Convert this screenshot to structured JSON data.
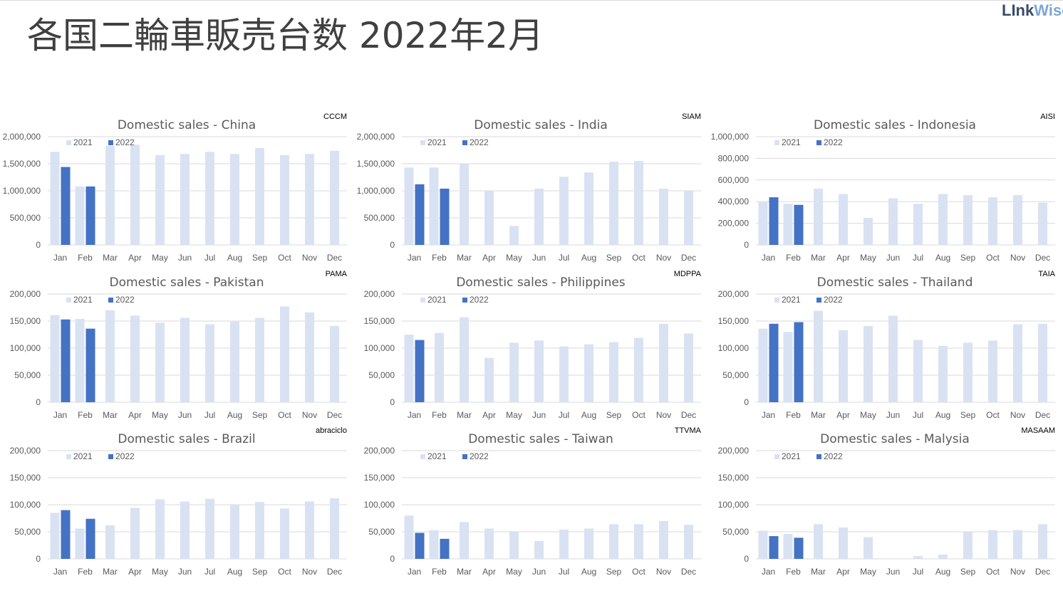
{
  "page": {
    "title": "各国二輪車販売台数 2022年2月",
    "logo": {
      "part1": "LInk",
      "part2": "Wise"
    }
  },
  "colors": {
    "series2021": "#d9e2f3",
    "series2022": "#4472c4",
    "grid": "#d9d9d9",
    "text": "#595959"
  },
  "chart_data": [
    {
      "type": "bar",
      "title": "Domestic sales - China",
      "source": "CCCM",
      "categories": [
        "Jan",
        "Feb",
        "Mar",
        "Apr",
        "May",
        "Jun",
        "Jul",
        "Aug",
        "Sep",
        "Oct",
        "Nov",
        "Dec"
      ],
      "ylim": [
        0,
        2000000
      ],
      "yticks": [
        0,
        500000,
        1000000,
        1500000,
        2000000
      ],
      "ytick_labels": [
        "0",
        "500,000",
        "1,000,000",
        "1,500,000",
        "2,000,000"
      ],
      "series": [
        {
          "name": "2021",
          "values": [
            1720000,
            1080000,
            1830000,
            1850000,
            1660000,
            1680000,
            1720000,
            1680000,
            1790000,
            1660000,
            1680000,
            1740000
          ]
        },
        {
          "name": "2022",
          "values": [
            1440000,
            1080000,
            null,
            null,
            null,
            null,
            null,
            null,
            null,
            null,
            null,
            null
          ]
        }
      ],
      "legend": "top-left",
      "grid": true
    },
    {
      "type": "bar",
      "title": "Domestic sales - India",
      "source": "SIAM",
      "categories": [
        "Jan",
        "Feb",
        "Mar",
        "Apr",
        "May",
        "Jun",
        "Jul",
        "Aug",
        "Sep",
        "Oct",
        "Nov",
        "Dec"
      ],
      "ylim": [
        0,
        2000000
      ],
      "yticks": [
        0,
        500000,
        1000000,
        1500000,
        2000000
      ],
      "ytick_labels": [
        "0",
        "500,000",
        "1,000,000",
        "1,500,000",
        "2,000,000"
      ],
      "series": [
        {
          "name": "2021",
          "values": [
            1430000,
            1430000,
            1500000,
            1000000,
            350000,
            1040000,
            1260000,
            1340000,
            1540000,
            1550000,
            1040000,
            1000000
          ]
        },
        {
          "name": "2022",
          "values": [
            1120000,
            1040000,
            null,
            null,
            null,
            null,
            null,
            null,
            null,
            null,
            null,
            null
          ]
        }
      ],
      "legend": "top-left",
      "grid": true
    },
    {
      "type": "bar",
      "title": "Domestic sales - Indonesia",
      "source": "AISI",
      "categories": [
        "Jan",
        "Feb",
        "Mar",
        "Apr",
        "May",
        "Jun",
        "Jul",
        "Aug",
        "Sep",
        "Oct",
        "Nov",
        "Dec"
      ],
      "ylim": [
        0,
        1000000
      ],
      "yticks": [
        0,
        200000,
        400000,
        600000,
        800000,
        1000000
      ],
      "ytick_labels": [
        "0",
        "200,000",
        "400,000",
        "600,000",
        "800,000",
        "1,000,000"
      ],
      "series": [
        {
          "name": "2021",
          "values": [
            400000,
            380000,
            520000,
            470000,
            250000,
            430000,
            380000,
            470000,
            460000,
            440000,
            460000,
            390000
          ]
        },
        {
          "name": "2022",
          "values": [
            440000,
            370000,
            null,
            null,
            null,
            null,
            null,
            null,
            null,
            null,
            null,
            null
          ]
        }
      ],
      "legend": "top-left",
      "grid": true
    },
    {
      "type": "bar",
      "title": "Domestic sales - Pakistan",
      "source": "PAMA",
      "categories": [
        "Jan",
        "Feb",
        "Mar",
        "Apr",
        "May",
        "Jun",
        "Jul",
        "Aug",
        "Sep",
        "Oct",
        "Nov",
        "Dec"
      ],
      "ylim": [
        0,
        200000
      ],
      "yticks": [
        0,
        50000,
        100000,
        150000,
        200000
      ],
      "ytick_labels": [
        "0",
        "50,000",
        "100,000",
        "150,000",
        "200,000"
      ],
      "series": [
        {
          "name": "2021",
          "values": [
            161000,
            154000,
            170000,
            160000,
            147000,
            156000,
            144000,
            149000,
            156000,
            177000,
            166000,
            141000
          ]
        },
        {
          "name": "2022",
          "values": [
            153000,
            136000,
            null,
            null,
            null,
            null,
            null,
            null,
            null,
            null,
            null,
            null
          ]
        }
      ],
      "legend": "top-left",
      "grid": true
    },
    {
      "type": "bar",
      "title": "Domestic sales - Philippines",
      "source": "MDPPA",
      "categories": [
        "Jan",
        "Feb",
        "Mar",
        "Apr",
        "May",
        "Jun",
        "Jul",
        "Aug",
        "Sep",
        "Oct",
        "Nov",
        "Dec"
      ],
      "ylim": [
        0,
        200000
      ],
      "yticks": [
        0,
        50000,
        100000,
        150000,
        200000
      ],
      "ytick_labels": [
        "0",
        "50,000",
        "100,000",
        "150,000",
        "200,000"
      ],
      "series": [
        {
          "name": "2021",
          "values": [
            125000,
            128000,
            157000,
            82000,
            110000,
            114000,
            103000,
            107000,
            111000,
            119000,
            145000,
            127000
          ]
        },
        {
          "name": "2022",
          "values": [
            115000,
            null,
            null,
            null,
            null,
            null,
            null,
            null,
            null,
            null,
            null,
            null
          ]
        }
      ],
      "legend": "top-left",
      "grid": true
    },
    {
      "type": "bar",
      "title": "Domestic sales - Thailand",
      "source": "TAIA",
      "categories": [
        "Jan",
        "Feb",
        "Mar",
        "Apr",
        "May",
        "Jun",
        "Jul",
        "Aug",
        "Sep",
        "Oct",
        "Nov",
        "Dec"
      ],
      "ylim": [
        0,
        200000
      ],
      "yticks": [
        0,
        50000,
        100000,
        150000,
        200000
      ],
      "ytick_labels": [
        "0",
        "50,000",
        "100,000",
        "150,000",
        "200,000"
      ],
      "series": [
        {
          "name": "2021",
          "values": [
            136000,
            130000,
            169000,
            133000,
            141000,
            160000,
            115000,
            104000,
            110000,
            114000,
            144000,
            145000
          ]
        },
        {
          "name": "2022",
          "values": [
            145000,
            148000,
            null,
            null,
            null,
            null,
            null,
            null,
            null,
            null,
            null,
            null
          ]
        }
      ],
      "legend": "top-left",
      "grid": true
    },
    {
      "type": "bar",
      "title": "Domestic sales - Brazil",
      "source": "abraciclo",
      "categories": [
        "Jan",
        "Feb",
        "Mar",
        "Apr",
        "May",
        "Jun",
        "Jul",
        "Aug",
        "Sep",
        "Oct",
        "Nov",
        "Dec"
      ],
      "ylim": [
        0,
        200000
      ],
      "yticks": [
        0,
        50000,
        100000,
        150000,
        200000
      ],
      "ytick_labels": [
        "0",
        "50,000",
        "100,000",
        "150,000",
        "200,000"
      ],
      "series": [
        {
          "name": "2021",
          "values": [
            85000,
            56000,
            62000,
            94000,
            110000,
            106000,
            111000,
            100000,
            105000,
            93000,
            106000,
            112000
          ]
        },
        {
          "name": "2022",
          "values": [
            90000,
            74000,
            null,
            null,
            null,
            null,
            null,
            null,
            null,
            null,
            null,
            null
          ]
        }
      ],
      "legend": "top-left",
      "grid": true
    },
    {
      "type": "bar",
      "title": "Domestic sales - Taiwan",
      "source": "TTVMA",
      "categories": [
        "Jan",
        "Feb",
        "Mar",
        "Apr",
        "May",
        "Jun",
        "Jul",
        "Aug",
        "Sep",
        "Oct",
        "Nov",
        "Dec"
      ],
      "ylim": [
        0,
        200000
      ],
      "yticks": [
        0,
        50000,
        100000,
        150000,
        200000
      ],
      "ytick_labels": [
        "0",
        "50,000",
        "100,000",
        "150,000",
        "200,000"
      ],
      "series": [
        {
          "name": "2021",
          "values": [
            80000,
            53000,
            68000,
            56000,
            51000,
            33000,
            54000,
            56000,
            64000,
            64000,
            70000,
            63000
          ]
        },
        {
          "name": "2022",
          "values": [
            48000,
            37000,
            null,
            null,
            null,
            null,
            null,
            null,
            null,
            null,
            null,
            null
          ]
        }
      ],
      "legend": "top-left",
      "grid": true
    },
    {
      "type": "bar",
      "title": "Domestic sales - Malysia",
      "source": "MASAAM",
      "categories": [
        "Jan",
        "Feb",
        "Mar",
        "Apr",
        "May",
        "Jun",
        "Jul",
        "Aug",
        "Sep",
        "Oct",
        "Nov",
        "Dec"
      ],
      "ylim": [
        0,
        200000
      ],
      "yticks": [
        0,
        50000,
        100000,
        150000,
        200000
      ],
      "ytick_labels": [
        "0",
        "50,000",
        "100,000",
        "150,000",
        "200,000"
      ],
      "series": [
        {
          "name": "2021",
          "values": [
            52000,
            46000,
            64000,
            58000,
            40000,
            0,
            5000,
            8000,
            50000,
            53000,
            53000,
            64000
          ]
        },
        {
          "name": "2022",
          "values": [
            42000,
            39000,
            null,
            null,
            null,
            null,
            null,
            null,
            null,
            null,
            null,
            null
          ]
        }
      ],
      "legend": "top-left",
      "grid": true
    }
  ]
}
